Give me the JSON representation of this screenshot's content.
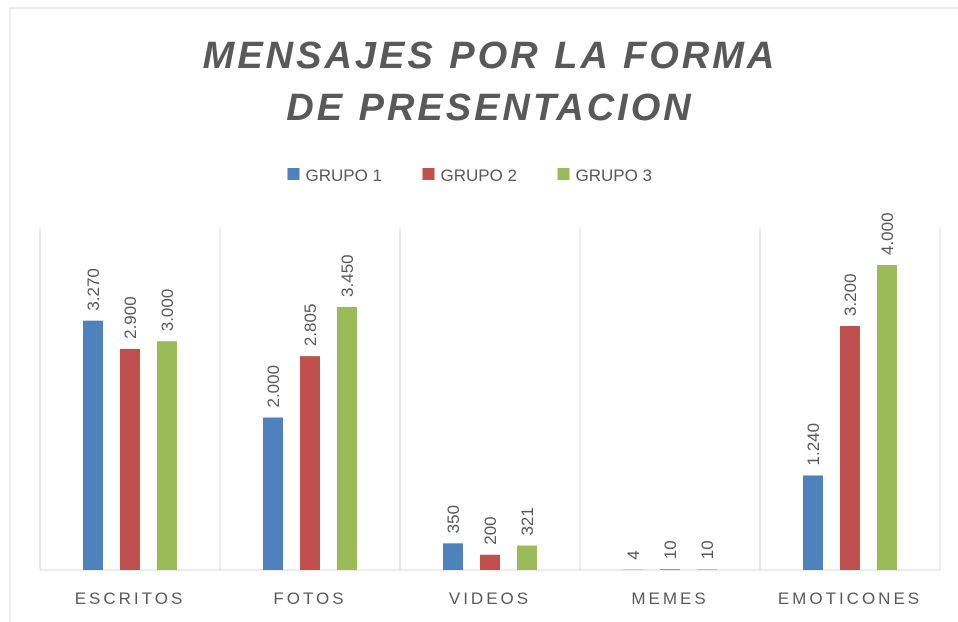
{
  "chart_data": {
    "type": "bar",
    "title": "MENSAJES POR LA FORMA DE PRESENTACION",
    "categories": [
      "ESCRITOS",
      "FOTOS",
      "VIDEOS",
      "MEMES",
      "EMOTICONES"
    ],
    "series": [
      {
        "name": "GRUPO 1",
        "color": "#4f81bd",
        "values": [
          3270,
          2000,
          350,
          4,
          1240
        ],
        "value_labels": [
          "3.270",
          "2.000",
          "350",
          "4",
          "1.240"
        ]
      },
      {
        "name": "GRUPO 2",
        "color": "#c0504d",
        "values": [
          2900,
          2805,
          200,
          10,
          3200
        ],
        "value_labels": [
          "2.900",
          "2.805",
          "200",
          "10",
          "3.200"
        ]
      },
      {
        "name": "GRUPO 3",
        "color": "#9bbb59",
        "values": [
          3000,
          3450,
          321,
          10,
          4000
        ],
        "value_labels": [
          "3.000",
          "3.450",
          "321",
          "10",
          "4.000"
        ]
      }
    ],
    "legend": "top"
  }
}
